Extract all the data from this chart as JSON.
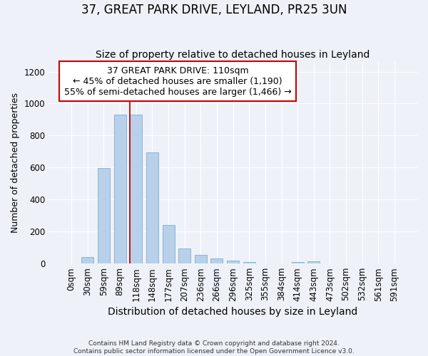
{
  "title": "37, GREAT PARK DRIVE, LEYLAND, PR25 3UN",
  "subtitle": "Size of property relative to detached houses in Leyland",
  "xlabel": "Distribution of detached houses by size in Leyland",
  "ylabel": "Number of detached properties",
  "footer1": "Contains HM Land Registry data © Crown copyright and database right 2024.",
  "footer2": "Contains public sector information licensed under the Open Government Licence v3.0.",
  "categories": [
    "0sqm",
    "30sqm",
    "59sqm",
    "89sqm",
    "118sqm",
    "148sqm",
    "177sqm",
    "207sqm",
    "236sqm",
    "266sqm",
    "296sqm",
    "325sqm",
    "355sqm",
    "384sqm",
    "414sqm",
    "443sqm",
    "473sqm",
    "502sqm",
    "532sqm",
    "561sqm",
    "591sqm"
  ],
  "values": [
    0,
    40,
    595,
    930,
    930,
    695,
    240,
    95,
    55,
    30,
    18,
    10,
    0,
    0,
    10,
    15,
    0,
    0,
    0,
    0,
    0
  ],
  "bar_color": "#b8d0ea",
  "bar_edge_color": "#7aafd4",
  "background_color": "#eef2f8",
  "grid_color": "#ffffff",
  "red_line_x": 4.0,
  "annotation_text1": "37 GREAT PARK DRIVE: 110sqm",
  "annotation_text2": "← 45% of detached houses are smaller (1,190)",
  "annotation_text3": "55% of semi-detached houses are larger (1,466) →",
  "annotation_box_facecolor": "#ffffff",
  "annotation_box_edgecolor": "#cc0000",
  "ylim": [
    0,
    1260
  ],
  "yticks": [
    0,
    200,
    400,
    600,
    800,
    1000,
    1200
  ],
  "title_fontsize": 12,
  "subtitle_fontsize": 10,
  "xlabel_fontsize": 10,
  "ylabel_fontsize": 9,
  "tick_fontsize": 8.5,
  "annot_fontsize": 9
}
